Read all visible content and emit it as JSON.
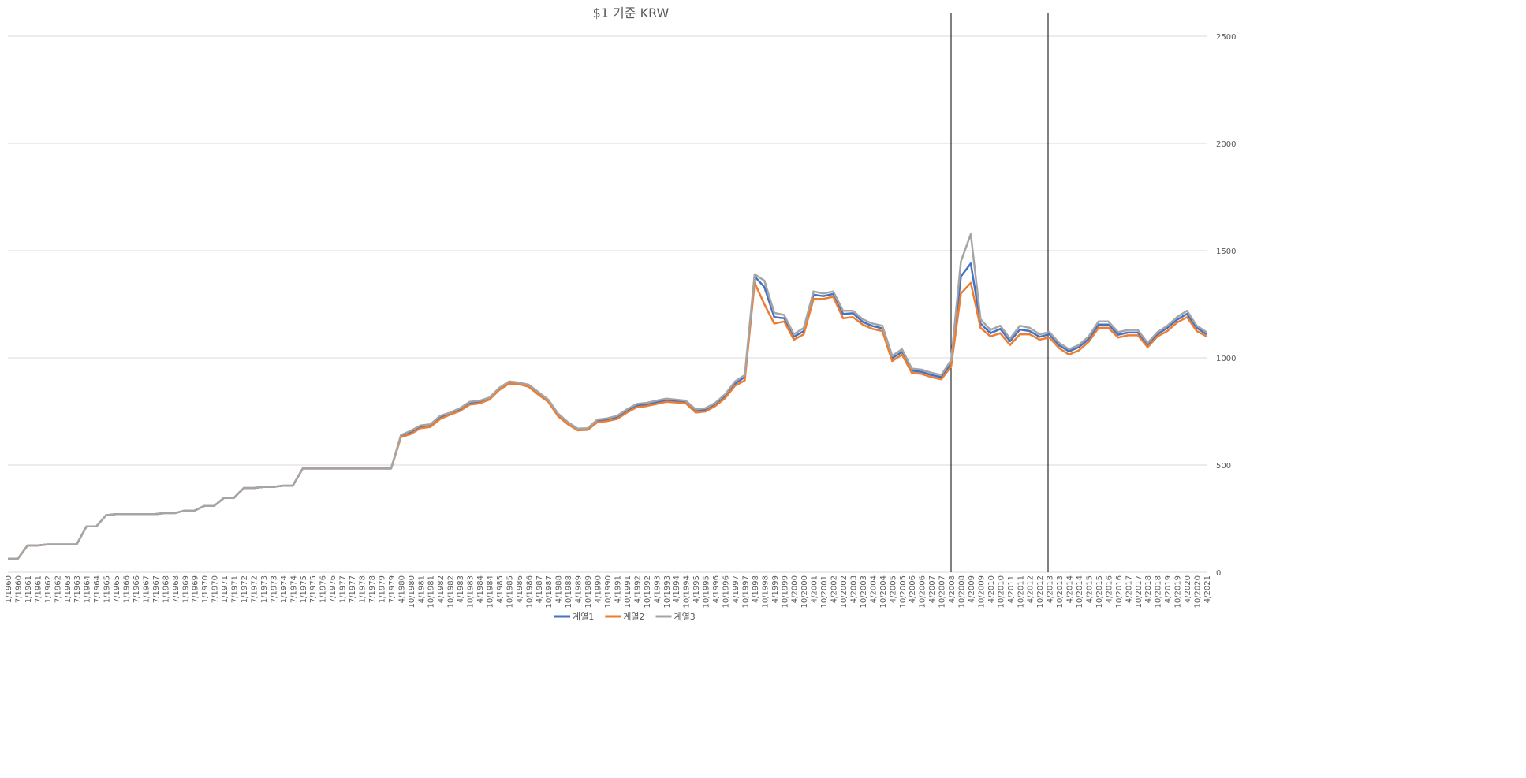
{
  "chart_data": {
    "type": "line",
    "title": "$1 기준 KRW",
    "categories": [
      "1/1960",
      "7/1960",
      "1/1961",
      "7/1961",
      "1/1962",
      "7/1962",
      "1/1963",
      "7/1963",
      "1/1964",
      "7/1964",
      "1/1965",
      "7/1965",
      "1/1966",
      "7/1966",
      "1/1967",
      "7/1967",
      "1/1968",
      "7/1968",
      "1/1969",
      "7/1969",
      "1/1970",
      "7/1970",
      "1/1971",
      "7/1971",
      "1/1972",
      "7/1972",
      "1/1973",
      "7/1973",
      "1/1974",
      "7/1974",
      "1/1975",
      "7/1975",
      "1/1976",
      "7/1976",
      "1/1977",
      "7/1977",
      "1/1978",
      "7/1978",
      "1/1979",
      "7/1979",
      "4/1980",
      "10/1980",
      "4/1981",
      "10/1981",
      "4/1982",
      "10/1982",
      "4/1983",
      "10/1983",
      "4/1984",
      "10/1984",
      "4/1985",
      "10/1985",
      "4/1986",
      "10/1986",
      "4/1987",
      "10/1987",
      "4/1988",
      "10/1988",
      "4/1989",
      "10/1989",
      "4/1990",
      "10/1990",
      "4/1991",
      "10/1991",
      "4/1992",
      "10/1992",
      "4/1993",
      "10/1993",
      "4/1994",
      "10/1994",
      "4/1995",
      "10/1995",
      "4/1996",
      "10/1996",
      "4/1997",
      "10/1997",
      "4/1998",
      "10/1998",
      "4/1999",
      "10/1999",
      "4/2000",
      "10/2000",
      "4/2001",
      "10/2001",
      "4/2002",
      "10/2002",
      "4/2003",
      "10/2003",
      "4/2004",
      "10/2004",
      "4/2005",
      "10/2005",
      "4/2006",
      "10/2006",
      "4/2007",
      "10/2007",
      "4/2008",
      "10/2008",
      "4/2009",
      "10/2009",
      "4/2010",
      "10/2010",
      "4/2011",
      "10/2011",
      "4/2012",
      "10/2012",
      "4/2013",
      "10/2013",
      "4/2014",
      "10/2014",
      "4/2015",
      "10/2015",
      "4/2016",
      "10/2016",
      "4/2017",
      "10/2017",
      "4/2018",
      "10/2018",
      "4/2019",
      "10/2019",
      "4/2020",
      "10/2020",
      "4/2021"
    ],
    "series": [
      {
        "name": "계열1",
        "color": "#4472c4",
        "values": [
          62.5,
          62.5,
          125,
          125,
          130,
          130,
          130,
          130,
          214,
          214,
          266,
          271,
          271,
          271,
          271,
          271,
          276,
          276,
          288,
          288,
          310,
          310,
          347,
          347,
          393,
          393,
          398,
          398,
          404,
          404,
          484,
          484,
          484,
          484,
          484,
          484,
          484,
          484,
          484,
          484,
          635,
          652,
          680,
          685,
          725,
          740,
          760,
          790,
          795,
          810,
          855,
          885,
          880,
          870,
          835,
          800,
          735,
          695,
          665,
          667,
          707,
          712,
          724,
          753,
          778,
          783,
          793,
          803,
          798,
          793,
          752,
          757,
          782,
          822,
          880,
          910,
          1380,
          1330,
          1190,
          1185,
          1098,
          1125,
          1295,
          1288,
          1298,
          1205,
          1208,
          1168,
          1148,
          1138,
          998,
          1028,
          940,
          935,
          920,
          910,
          975,
          1380,
          1440,
          1160,
          1115,
          1135,
          1078,
          1132,
          1125,
          1098,
          1110,
          1058,
          1030,
          1050,
          1088,
          1155,
          1155,
          1108,
          1118,
          1118,
          1060,
          1110,
          1140,
          1178,
          1205,
          1140,
          1110
        ]
      },
      {
        "name": "계열2",
        "color": "#ed7d31",
        "values": [
          62.5,
          62.5,
          125,
          125,
          130,
          130,
          130,
          130,
          214,
          214,
          266,
          271,
          271,
          271,
          271,
          271,
          276,
          276,
          288,
          288,
          310,
          310,
          347,
          347,
          393,
          393,
          398,
          398,
          404,
          404,
          484,
          484,
          484,
          484,
          484,
          484,
          484,
          484,
          484,
          484,
          630,
          645,
          672,
          678,
          715,
          735,
          752,
          782,
          788,
          805,
          850,
          880,
          878,
          865,
          828,
          795,
          728,
          690,
          662,
          664,
          700,
          705,
          715,
          745,
          770,
          775,
          785,
          795,
          792,
          788,
          745,
          750,
          775,
          812,
          870,
          895,
          1350,
          1250,
          1160,
          1170,
          1085,
          1110,
          1275,
          1275,
          1285,
          1185,
          1190,
          1155,
          1135,
          1125,
          985,
          1015,
          930,
          925,
          910,
          900,
          960,
          1300,
          1350,
          1140,
          1100,
          1115,
          1060,
          1110,
          1110,
          1085,
          1095,
          1045,
          1015,
          1035,
          1075,
          1140,
          1140,
          1095,
          1105,
          1105,
          1050,
          1100,
          1125,
          1165,
          1190,
          1125,
          1100
        ]
      },
      {
        "name": "계열3",
        "color": "#a5a5a5",
        "values": [
          62.5,
          62.5,
          125,
          125,
          130,
          130,
          130,
          130,
          214,
          214,
          266,
          271,
          271,
          271,
          271,
          271,
          276,
          276,
          288,
          288,
          310,
          310,
          347,
          347,
          393,
          393,
          398,
          398,
          404,
          404,
          484,
          484,
          484,
          484,
          484,
          484,
          484,
          484,
          484,
          484,
          640,
          660,
          685,
          690,
          730,
          745,
          765,
          795,
          800,
          815,
          860,
          890,
          885,
          875,
          840,
          805,
          740,
          700,
          670,
          672,
          712,
          718,
          730,
          760,
          785,
          790,
          800,
          810,
          805,
          800,
          760,
          765,
          790,
          830,
          890,
          920,
          1390,
          1360,
          1210,
          1200,
          1110,
          1140,
          1310,
          1300,
          1310,
          1220,
          1220,
          1180,
          1160,
          1150,
          1010,
          1040,
          950,
          945,
          930,
          920,
          990,
          1450,
          1577,
          1180,
          1130,
          1150,
          1090,
          1150,
          1140,
          1110,
          1120,
          1070,
          1040,
          1060,
          1100,
          1170,
          1170,
          1120,
          1130,
          1130,
          1070,
          1120,
          1150,
          1190,
          1220,
          1150,
          1120
        ]
      }
    ],
    "ylim": [
      0,
      2500
    ],
    "yticks": [
      0,
      500,
      1000,
      1500,
      2000,
      2500
    ],
    "grid": true
  }
}
